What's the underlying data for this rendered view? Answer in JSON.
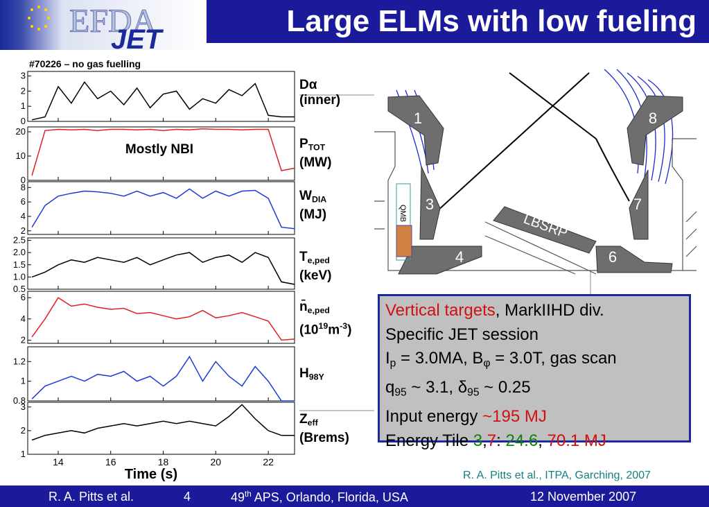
{
  "header": {
    "title": "Large ELMs with low fueling",
    "logo": {
      "top": "EFDA",
      "bottom": "JET"
    }
  },
  "shot_label": "#70226 – no gas fuelling",
  "annotation": "Mostly NBI",
  "chart_data": {
    "type": "line",
    "xlabel": "Time (s)",
    "x": [
      13,
      13.5,
      14,
      14.5,
      15,
      15.5,
      16,
      16.5,
      17,
      17.5,
      18,
      18.5,
      19,
      19.5,
      20,
      20.5,
      21,
      21.5,
      22,
      22.5,
      23
    ],
    "xlim": [
      12.84,
      23.0
    ],
    "xticks": [
      14,
      16,
      18,
      20,
      22
    ],
    "panels": [
      {
        "label": [
          {
            "text": "D"
          },
          {
            "text": "α",
            "style": "greek"
          }
        ],
        "unit": [
          {
            "text": "(inner)"
          }
        ],
        "color": "#000000",
        "values": [
          0.1,
          0.3,
          2.3,
          1.2,
          2.6,
          1.5,
          2.0,
          1.1,
          2.2,
          0.9,
          1.8,
          2.0,
          0.8,
          1.5,
          1.2,
          2.1,
          1.7,
          2.5,
          0.4,
          0.3,
          0.3
        ],
        "ylim": [
          0,
          3.3
        ],
        "yticks": [
          0,
          1,
          2,
          3
        ]
      },
      {
        "label": [
          {
            "text": "P"
          },
          {
            "text": "TOT",
            "style": "sub"
          }
        ],
        "unit": [
          {
            "text": "(MW)"
          }
        ],
        "color": "#e02020",
        "values": [
          2,
          20.5,
          21,
          20.8,
          21,
          20.5,
          21,
          21,
          20.8,
          21,
          20.5,
          21,
          20.8,
          21.2,
          21,
          21,
          20.8,
          21,
          21,
          4,
          5
        ],
        "ylim": [
          0,
          22
        ],
        "yticks": [
          0,
          10,
          20
        ]
      },
      {
        "label": [
          {
            "text": "W"
          },
          {
            "text": "DIA",
            "style": "sub"
          }
        ],
        "unit": [
          {
            "text": "(MJ)"
          }
        ],
        "color": "#1a3ad8",
        "values": [
          2.5,
          5.5,
          6.8,
          7.2,
          7.5,
          7.4,
          7.2,
          6.8,
          7.5,
          6.8,
          7.3,
          6.5,
          7.8,
          6.5,
          7.5,
          6.8,
          7.5,
          7.6,
          6.5,
          2.5,
          2.3
        ],
        "ylim": [
          1.5,
          8.8
        ],
        "yticks": [
          2,
          4,
          6,
          8
        ]
      },
      {
        "label": [
          {
            "text": "T"
          },
          {
            "text": "e,ped",
            "style": "sub"
          }
        ],
        "unit": [
          {
            "text": "(keV)"
          }
        ],
        "color": "#000000",
        "values": [
          1.0,
          1.2,
          1.5,
          1.7,
          1.6,
          1.8,
          1.7,
          1.6,
          1.8,
          1.5,
          1.7,
          1.9,
          2.0,
          1.6,
          1.8,
          1.9,
          1.6,
          2.0,
          1.8,
          0.8,
          0.7
        ],
        "ylim": [
          0.5,
          2.6
        ],
        "yticks": [
          0.5,
          {
            "value": 1,
            "label": "1.0"
          },
          1.5,
          {
            "value": 2,
            "label": "2.0"
          },
          2.5
        ]
      },
      {
        "label": [
          {
            "text": "n̄"
          },
          {
            "text": "e,ped",
            "style": "sub"
          }
        ],
        "unit": [
          {
            "text": "(10"
          },
          {
            "text": "19",
            "style": "sup"
          },
          {
            "text": "m"
          },
          {
            "text": "-3",
            "style": "sup"
          },
          {
            "text": ")"
          }
        ],
        "color": "#e02020",
        "values": [
          2.3,
          4.0,
          6.0,
          5.2,
          5.4,
          5.1,
          4.9,
          5.0,
          4.5,
          4.6,
          4.3,
          4.0,
          4.2,
          4.8,
          4.1,
          4.3,
          4.6,
          4.2,
          3.8,
          2.0,
          2.1
        ],
        "ylim": [
          1.7,
          6.6
        ],
        "yticks": [
          2,
          4,
          6
        ]
      },
      {
        "label": [
          {
            "text": "H"
          },
          {
            "text": "98Y",
            "style": "sub"
          }
        ],
        "unit": [],
        "color": "#1a3ad8",
        "values": [
          0.82,
          0.95,
          1.0,
          1.05,
          1.0,
          1.07,
          1.05,
          1.1,
          1.0,
          1.05,
          0.95,
          1.05,
          1.25,
          1.0,
          1.2,
          1.05,
          0.95,
          1.15,
          1.0,
          0.8,
          0.8
        ],
        "ylim": [
          0.8,
          1.35
        ],
        "yticks": [
          0.8,
          1,
          1.2
        ]
      },
      {
        "label": [
          {
            "text": "Z"
          },
          {
            "text": "eff",
            "style": "sub"
          }
        ],
        "unit": [
          {
            "text": "(Brems)"
          }
        ],
        "color": "#000000",
        "values": [
          1.6,
          1.8,
          1.9,
          2.0,
          1.9,
          2.1,
          2.2,
          2.3,
          2.2,
          2.3,
          2.4,
          2.3,
          2.4,
          2.3,
          2.2,
          2.6,
          3.1,
          2.5,
          2.0,
          1.8,
          1.8
        ],
        "ylim": [
          1,
          3.2
        ],
        "yticks": [
          1,
          2,
          3
        ]
      }
    ]
  },
  "diagram": {
    "tiles": [
      "1",
      "8",
      "3",
      "7",
      "4",
      "6"
    ],
    "lbsrp": "LBSRP",
    "qmb": "QMB"
  },
  "info_box": [
    [
      {
        "text": "Vertical targets",
        "color": "#d01010"
      },
      {
        "text": ", MarkIIHD div."
      }
    ],
    [
      {
        "text": "Specific JET session"
      }
    ],
    [
      {
        "text": "I"
      },
      {
        "text": "p",
        "style": "sub"
      },
      {
        "text": " = 3.0MA, B"
      },
      {
        "text": "φ",
        "style": "sub"
      },
      {
        "text": " = 3.0T, gas scan"
      }
    ],
    [
      {
        "text": "q"
      },
      {
        "text": "95",
        "style": "sub"
      },
      {
        "text": " ~ 3.1, δ"
      },
      {
        "text": "95",
        "style": "sub"
      },
      {
        "text": " ~ 0.25"
      }
    ],
    [
      {
        "text": "Input energy "
      },
      {
        "text": "~195 MJ",
        "color": "#d01010"
      }
    ],
    [
      {
        "text": "Energy Tile "
      },
      {
        "text": "3",
        "color": "#108010"
      },
      {
        "text": ","
      },
      {
        "text": "7",
        "color": "#d01010"
      },
      {
        "text": ": "
      },
      {
        "text": "24.6",
        "color": "#108010"
      },
      {
        "text": ", "
      },
      {
        "text": "70.1 MJ",
        "color": "#d01010"
      }
    ]
  ],
  "citation": "R. A. Pitts et al., ITPA, Garching, 2007",
  "footer": {
    "author": "R. A. Pitts et al.",
    "page": "4",
    "event": [
      {
        "text": "49"
      },
      {
        "text": "th",
        "style": "sup"
      },
      {
        "text": " APS, Orlando, Florida, USA"
      }
    ],
    "date": "12 November 2007"
  }
}
